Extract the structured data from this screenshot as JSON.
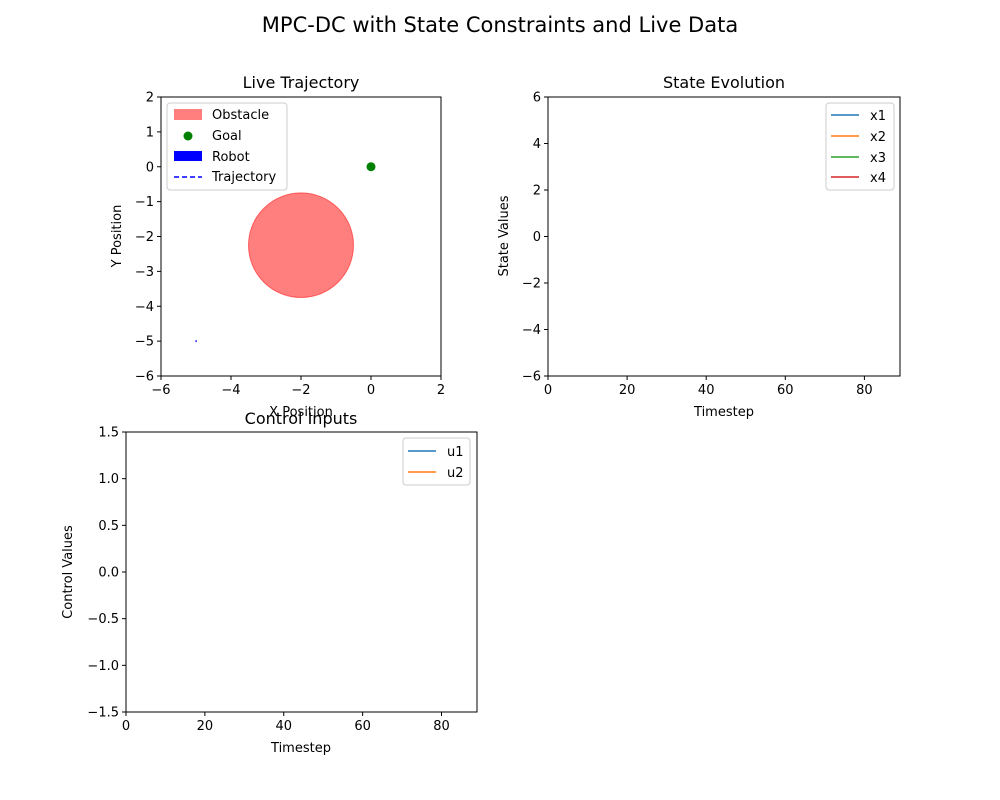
{
  "figure_title": "MPC-DC with State Constraints and Live Data",
  "colors": {
    "obstacle": "#ff0000",
    "goal": "#008000",
    "robot": "#0000ff",
    "trajectory": "#0000ff",
    "c1": "#1f77b4",
    "c2": "#ff7f0e",
    "c3": "#2ca02c",
    "c4": "#d62728"
  },
  "chart_data": [
    {
      "id": "trajectory",
      "type": "scatter",
      "title": "Live Trajectory",
      "xlabel": "X Position",
      "ylabel": "Y Position",
      "xlim": [
        -6,
        2
      ],
      "ylim": [
        -6,
        2
      ],
      "xticks": [
        "−6",
        "−4",
        "−2",
        "0",
        "2"
      ],
      "yticks": [
        "−6",
        "−5",
        "−4",
        "−3",
        "−2",
        "−1",
        "0",
        "1",
        "2"
      ],
      "legend_position": "upper-left",
      "legend": [
        "Obstacle",
        "Goal",
        "Robot",
        "Trajectory"
      ],
      "obstacle": {
        "center": [
          -2.0,
          -2.25
        ],
        "radius": 1.5
      },
      "goal": [
        0,
        0
      ],
      "robot": [
        -5,
        -5
      ],
      "trajectory": [
        [
          -5,
          -5
        ]
      ]
    },
    {
      "id": "states",
      "type": "line",
      "title": "State Evolution",
      "xlabel": "Timestep",
      "ylabel": "State Values",
      "xlim": [
        0,
        89
      ],
      "ylim": [
        -6,
        6
      ],
      "xticks": [
        "0",
        "20",
        "40",
        "60",
        "80"
      ],
      "yticks": [
        "−6",
        "−4",
        "−2",
        "0",
        "2",
        "4",
        "6"
      ],
      "legend_position": "upper-right",
      "series": [
        {
          "name": "x1",
          "values": []
        },
        {
          "name": "x2",
          "values": []
        },
        {
          "name": "x3",
          "values": []
        },
        {
          "name": "x4",
          "values": []
        }
      ]
    },
    {
      "id": "controls",
      "type": "line",
      "title": "Control Inputs",
      "xlabel": "Timestep",
      "ylabel": "Control Values",
      "xlim": [
        0,
        89
      ],
      "ylim": [
        -1.5,
        1.5
      ],
      "xticks": [
        "0",
        "20",
        "40",
        "60",
        "80"
      ],
      "yticks": [
        "−1.5",
        "−1.0",
        "−0.5",
        "0.0",
        "0.5",
        "1.0",
        "1.5"
      ],
      "legend_position": "upper-right",
      "series": [
        {
          "name": "u1",
          "values": []
        },
        {
          "name": "u2",
          "values": []
        }
      ]
    }
  ]
}
